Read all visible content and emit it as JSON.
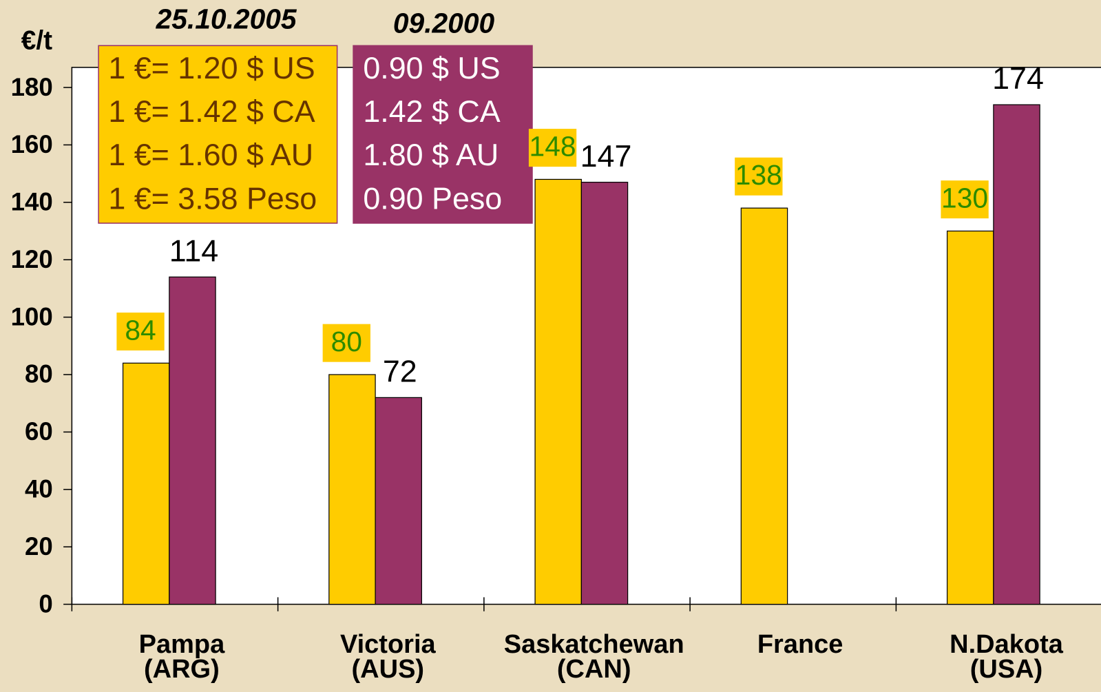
{
  "chart_data": {
    "type": "bar",
    "y_label": "€/t",
    "categories": [
      "Pampa\n(ARG)",
      "Victoria\n(AUS)",
      "Saskatchewan\n(CAN)",
      "France",
      "N.Dakota\n(USA)"
    ],
    "series": [
      {
        "name": "25.10.2005",
        "color": "#FFCC00",
        "label_color": "#2E8B00",
        "values": [
          84,
          80,
          148,
          138,
          130
        ],
        "rates": [
          "1 €= 1.20 $ US",
          "1 €= 1.42 $ CA",
          "1 €= 1.60 $ AU",
          "1 €= 3.58 Peso"
        ]
      },
      {
        "name": "09.2000",
        "color": "#993366",
        "label_color": "#000000",
        "values": [
          114,
          72,
          147,
          null,
          174
        ],
        "rates": [
          "0.90 $ US",
          "1.42 $ CA",
          "1.80 $ AU",
          "0.90 Peso"
        ]
      }
    ],
    "ylim": [
      0,
      187
    ],
    "yticks": [
      0,
      20,
      40,
      60,
      80,
      100,
      120,
      140,
      160,
      180
    ]
  }
}
